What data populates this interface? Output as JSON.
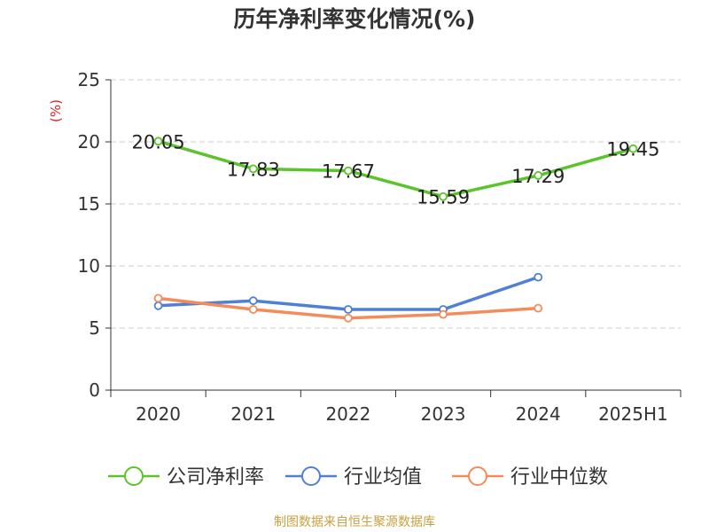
{
  "chart_data": {
    "type": "line",
    "title": "历年净利率变化情况(%)",
    "ylabel": "(%)",
    "ylim": [
      0,
      25
    ],
    "yticks": [
      0,
      5,
      10,
      15,
      20,
      25
    ],
    "categories": [
      "2020",
      "2021",
      "2022",
      "2023",
      "2024",
      "2025H1"
    ],
    "grid": true,
    "legend_position": "bottom",
    "series": [
      {
        "name": "公司净利率",
        "color": "#5bc32c",
        "values": [
          20.05,
          17.83,
          17.67,
          15.59,
          17.29,
          19.45
        ],
        "labels": [
          "20.05",
          "17.83",
          "17.67",
          "15.59",
          "17.29",
          "19.45"
        ]
      },
      {
        "name": "行业均值",
        "color": "#4f7fd6",
        "values": [
          6.8,
          7.2,
          6.5,
          6.5,
          9.1,
          null
        ]
      },
      {
        "name": "行业中位数",
        "color": "#f48c5a",
        "values": [
          7.4,
          6.5,
          5.8,
          6.1,
          6.6,
          null
        ]
      }
    ]
  },
  "footer": {
    "source": "制图数据来自恒生聚源数据库"
  }
}
